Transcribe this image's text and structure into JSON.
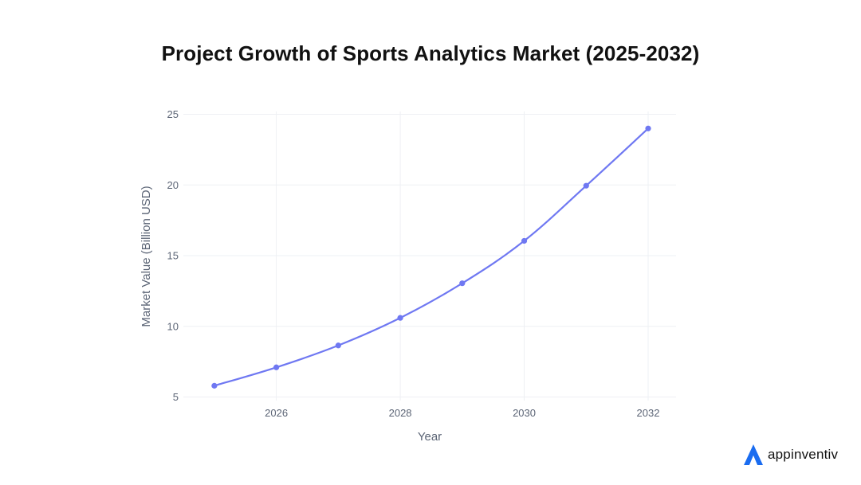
{
  "chart_data": {
    "type": "line",
    "title": "Project Growth of Sports Analytics Market (2025-2032)",
    "xlabel": "Year",
    "ylabel": "Market Value (Billion USD)",
    "x": [
      2025,
      2026,
      2027,
      2028,
      2029,
      2030,
      2031,
      2032
    ],
    "series": [
      {
        "name": "Market Value",
        "values": [
          5.8,
          7.1,
          8.65,
          10.6,
          13.05,
          16.05,
          19.95,
          24.0
        ],
        "color": "#6f78f2"
      }
    ],
    "xlim": [
      2024.5,
      2032.45
    ],
    "ylim": [
      4.75,
      25.2
    ],
    "xticks": [
      2026,
      2028,
      2030,
      2032
    ],
    "xtick_labels": [
      "2026",
      "2028",
      "2030",
      "2032"
    ],
    "yticks": [
      5,
      10,
      15,
      20,
      25
    ],
    "ytick_labels": [
      "5",
      "10",
      "15",
      "20",
      "25"
    ],
    "grid": true,
    "grid_color": "#eef0f4",
    "line_color": "#6f78f2"
  },
  "brand": {
    "name": "appinventiv",
    "logo": "appinventiv-logo-icon",
    "logo_color": "#1a6cf0"
  }
}
